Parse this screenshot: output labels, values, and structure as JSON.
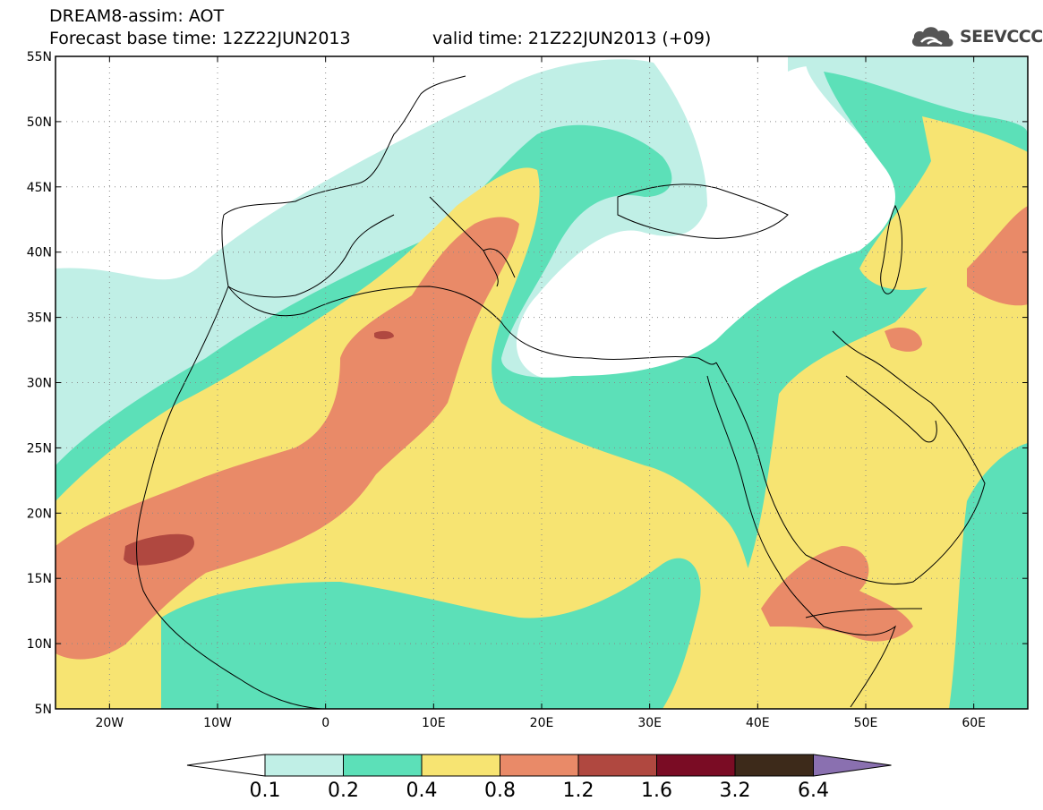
{
  "header": {
    "line1": "DREAM8-assim: AOT",
    "line2": "Forecast base time: 12Z22JUN2013",
    "line3": "valid time: 21Z22JUN2013 (+09)"
  },
  "logo": {
    "text": "SEEVCCC",
    "icon": "cloud-icon"
  },
  "map": {
    "lon_range": [
      -25,
      65
    ],
    "lat_range": [
      5,
      55
    ],
    "lon_ticks": [
      {
        "value": -20,
        "label": "20W"
      },
      {
        "value": -10,
        "label": "10W"
      },
      {
        "value": 0,
        "label": "0"
      },
      {
        "value": 10,
        "label": "10E"
      },
      {
        "value": 20,
        "label": "20E"
      },
      {
        "value": 30,
        "label": "30E"
      },
      {
        "value": 40,
        "label": "40E"
      },
      {
        "value": 50,
        "label": "50E"
      },
      {
        "value": 60,
        "label": "60E"
      }
    ],
    "lat_ticks": [
      {
        "value": 55,
        "label": "55N"
      },
      {
        "value": 50,
        "label": "50N"
      },
      {
        "value": 45,
        "label": "45N"
      },
      {
        "value": 40,
        "label": "40N"
      },
      {
        "value": 35,
        "label": "35N"
      },
      {
        "value": 30,
        "label": "30N"
      },
      {
        "value": 25,
        "label": "25N"
      },
      {
        "value": 20,
        "label": "20N"
      },
      {
        "value": 15,
        "label": "15N"
      },
      {
        "value": 10,
        "label": "10N"
      },
      {
        "value": 5,
        "label": "5N"
      }
    ],
    "grid": "dotted"
  },
  "colorbar": {
    "levels": [
      "0.1",
      "0.2",
      "0.4",
      "0.8",
      "1.2",
      "1.6",
      "3.2",
      "6.4"
    ],
    "colors": [
      "#ffffff",
      "#c0efe6",
      "#5ce0b8",
      "#f7e472",
      "#e98a68",
      "#b04840",
      "#7a0c24",
      "#3d2a1a",
      "#8a70b0"
    ]
  }
}
